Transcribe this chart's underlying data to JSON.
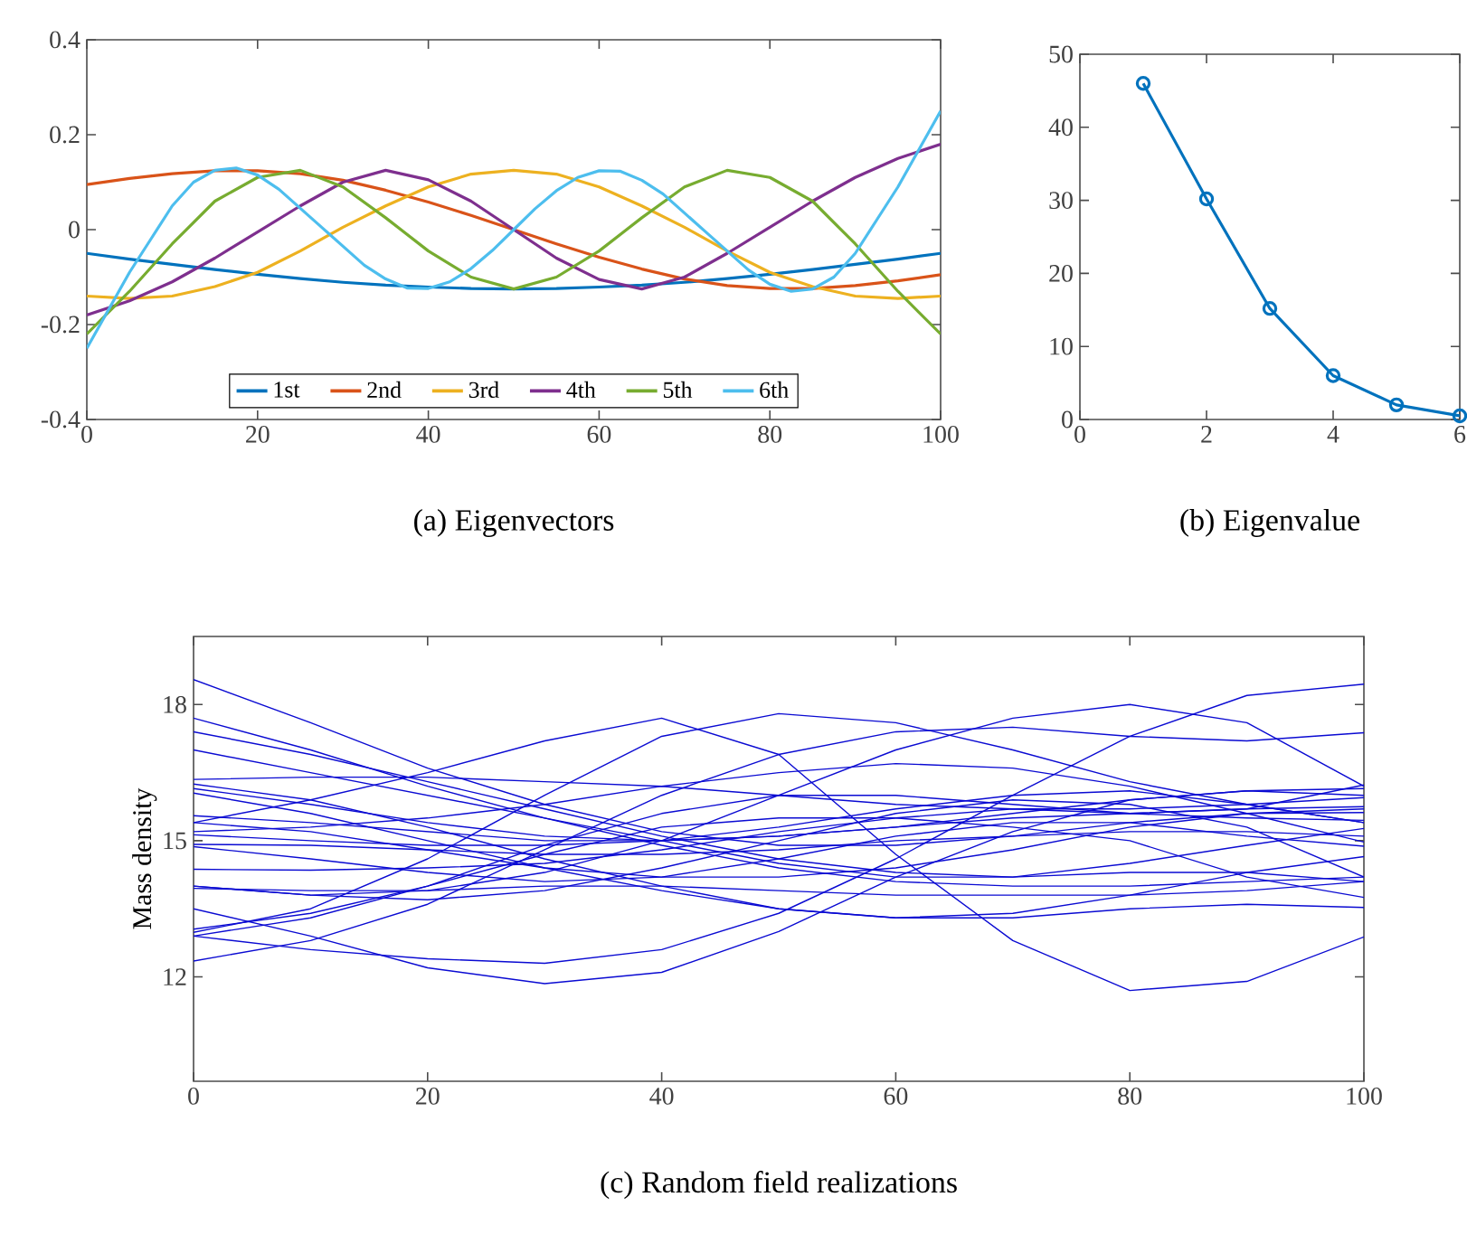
{
  "chart_data": [
    {
      "type": "line",
      "title": "(a)  Eigenvectors",
      "legend": "bottom",
      "marker": "none",
      "xlim": [
        0,
        100
      ],
      "ylim": [
        -0.4,
        0.4
      ],
      "xticks": [
        0,
        20,
        40,
        60,
        80,
        100
      ],
      "yticks": [
        -0.4,
        -0.2,
        0,
        0.2,
        0.4
      ],
      "series": [
        {
          "name": "1st",
          "color": "#0072bd",
          "x": [
            0,
            5,
            10,
            15,
            20,
            25,
            30,
            35,
            40,
            45,
            50,
            55,
            60,
            65,
            70,
            75,
            80,
            85,
            90,
            95,
            100
          ],
          "values": [
            -0.05,
            -0.062,
            -0.073,
            -0.084,
            -0.094,
            -0.103,
            -0.111,
            -0.117,
            -0.121,
            -0.124,
            -0.125,
            -0.124,
            -0.121,
            -0.117,
            -0.111,
            -0.103,
            -0.094,
            -0.084,
            -0.073,
            -0.062,
            -0.05
          ]
        },
        {
          "name": "2nd",
          "color": "#d95319",
          "x": [
            0,
            5,
            10,
            15,
            20,
            25,
            30,
            35,
            40,
            45,
            50,
            55,
            60,
            65,
            70,
            75,
            80,
            85,
            90,
            95,
            100
          ],
          "values": [
            0.095,
            0.108,
            0.118,
            0.124,
            0.124,
            0.118,
            0.104,
            0.083,
            0.058,
            0.03,
            0,
            -0.03,
            -0.058,
            -0.083,
            -0.104,
            -0.118,
            -0.124,
            -0.124,
            -0.118,
            -0.108,
            -0.095
          ]
        },
        {
          "name": "3rd",
          "color": "#edb120",
          "x": [
            0,
            5,
            10,
            15,
            20,
            25,
            30,
            35,
            40,
            45,
            50,
            55,
            60,
            65,
            70,
            75,
            80,
            85,
            90,
            95,
            100
          ],
          "values": [
            -0.14,
            -0.145,
            -0.14,
            -0.12,
            -0.09,
            -0.045,
            0.005,
            0.05,
            0.09,
            0.117,
            0.125,
            0.117,
            0.09,
            0.05,
            0.005,
            -0.045,
            -0.09,
            -0.12,
            -0.14,
            -0.145,
            -0.14
          ]
        },
        {
          "name": "4th",
          "color": "#7e2f8e",
          "x": [
            0,
            5,
            10,
            15,
            20,
            25,
            30,
            35,
            40,
            45,
            50,
            55,
            60,
            65,
            70,
            75,
            80,
            85,
            90,
            95,
            100
          ],
          "values": [
            -0.18,
            -0.15,
            -0.11,
            -0.06,
            -0.005,
            0.05,
            0.1,
            0.125,
            0.105,
            0.06,
            0,
            -0.06,
            -0.105,
            -0.125,
            -0.1,
            -0.05,
            0.005,
            0.06,
            0.11,
            0.15,
            0.18
          ]
        },
        {
          "name": "5th",
          "color": "#77ac30",
          "x": [
            0,
            5,
            10,
            15,
            20,
            25,
            30,
            35,
            40,
            45,
            50,
            55,
            60,
            65,
            70,
            75,
            80,
            85,
            90,
            95,
            100
          ],
          "values": [
            -0.22,
            -0.13,
            -0.03,
            0.06,
            0.11,
            0.125,
            0.09,
            0.025,
            -0.045,
            -0.1,
            -0.125,
            -0.1,
            -0.045,
            0.025,
            0.09,
            0.125,
            0.11,
            0.06,
            -0.03,
            -0.13,
            -0.22
          ]
        },
        {
          "name": "6th",
          "color": "#4dbeee",
          "x": [
            0,
            2.5,
            5,
            7.5,
            10,
            12.5,
            15,
            17.5,
            20,
            22.5,
            25,
            27.5,
            30,
            32.5,
            35,
            37.5,
            40,
            42.5,
            45,
            47.5,
            50,
            52.5,
            55,
            57.5,
            60,
            62.5,
            65,
            67.5,
            70,
            72.5,
            75,
            77.5,
            80,
            82.5,
            85,
            87.5,
            90,
            92.5,
            95,
            97.5,
            100
          ],
          "values": [
            -0.25,
            -0.17,
            -0.09,
            -0.02,
            0.05,
            0.1,
            0.125,
            0.13,
            0.115,
            0.085,
            0.045,
            0.005,
            -0.035,
            -0.075,
            -0.104,
            -0.123,
            -0.124,
            -0.11,
            -0.082,
            -0.044,
            0,
            0.044,
            0.082,
            0.11,
            0.124,
            0.123,
            0.104,
            0.075,
            0.035,
            -0.005,
            -0.045,
            -0.085,
            -0.115,
            -0.13,
            -0.125,
            -0.1,
            -0.05,
            0.02,
            0.09,
            0.17,
            0.25
          ]
        }
      ]
    },
    {
      "type": "line",
      "title": "(b)  Eigenvalue",
      "marker": "circle",
      "xlim": [
        0,
        6
      ],
      "ylim": [
        0,
        50
      ],
      "xticks": [
        0,
        2,
        4,
        6
      ],
      "yticks": [
        0,
        10,
        20,
        30,
        40,
        50
      ],
      "series": [
        {
          "color": "#0072bd",
          "x": [
            1,
            2,
            3,
            4,
            5,
            6
          ],
          "values": [
            46,
            30.2,
            15.2,
            6,
            2,
            0.5
          ]
        }
      ]
    },
    {
      "type": "line",
      "title": "(c)  Random field realizations",
      "ylabel": "Mass density",
      "marker": "none",
      "xlim": [
        0,
        100
      ],
      "ylim": [
        9.7,
        19.5
      ],
      "xticks": [
        0,
        20,
        40,
        60,
        80,
        100
      ],
      "yticks": [
        12,
        15,
        18
      ],
      "series": [
        {
          "color": "#0a0ad2",
          "x": [
            0,
            10,
            20,
            30,
            40,
            50,
            60,
            70,
            80,
            90,
            100
          ],
          "values": [
            18.55,
            17.6,
            16.6,
            15.8,
            15.2,
            14.9,
            14.9,
            15.1,
            15.4,
            15.6,
            15.7
          ]
        },
        {
          "color": "#0a0ad2",
          "x": [
            0,
            10,
            20,
            30,
            40,
            50,
            60,
            70,
            80,
            90,
            100
          ],
          "values": [
            17.7,
            17.0,
            16.2,
            15.5,
            14.9,
            14.4,
            14.1,
            14.0,
            14.0,
            14.1,
            14.2
          ]
        },
        {
          "color": "#0a0ad2",
          "x": [
            0,
            10,
            20,
            30,
            40,
            50,
            60,
            70,
            80,
            90,
            100
          ],
          "values": [
            17.4,
            16.9,
            16.3,
            15.7,
            15.1,
            14.6,
            14.3,
            14.2,
            14.3,
            14.3,
            14.1
          ]
        },
        {
          "color": "#0a0ad2",
          "x": [
            0,
            10,
            20,
            30,
            40,
            50,
            60,
            70,
            80,
            90,
            100
          ],
          "values": [
            15.4,
            15.9,
            16.5,
            17.2,
            17.7,
            16.9,
            14.7,
            12.8,
            11.7,
            11.9,
            12.88
          ]
        },
        {
          "color": "#0a0ad2",
          "x": [
            0,
            10,
            20,
            30,
            40,
            50,
            60,
            70,
            80,
            90,
            100
          ],
          "values": [
            13.5,
            12.9,
            12.2,
            11.85,
            12.1,
            13.0,
            14.2,
            15.2,
            15.9,
            16.1,
            16.0
          ]
        },
        {
          "color": "#0a0ad2",
          "x": [
            0,
            10,
            20,
            30,
            40,
            50,
            60,
            70,
            80,
            90,
            100
          ],
          "values": [
            12.9,
            12.6,
            12.4,
            12.3,
            12.6,
            13.4,
            14.6,
            16.0,
            17.3,
            18.2,
            18.45
          ]
        },
        {
          "color": "#0a0ad2",
          "x": [
            0,
            10,
            20,
            30,
            40,
            50,
            60,
            70,
            80,
            90,
            100
          ],
          "values": [
            14.0,
            13.8,
            13.9,
            14.3,
            15.0,
            16.0,
            17.0,
            17.7,
            18.0,
            17.6,
            16.2
          ]
        },
        {
          "color": "#0a0ad2",
          "x": [
            0,
            10,
            20,
            30,
            40,
            50,
            60,
            70,
            80,
            90,
            100
          ],
          "values": [
            12.98,
            13.5,
            14.6,
            16.0,
            17.3,
            17.8,
            17.6,
            17.0,
            16.3,
            15.8,
            15.4
          ]
        },
        {
          "color": "#0a0ad2",
          "x": [
            0,
            10,
            20,
            30,
            40,
            50,
            60,
            70,
            80,
            90,
            100
          ],
          "values": [
            12.35,
            12.8,
            13.6,
            14.8,
            16.0,
            16.9,
            17.4,
            17.5,
            17.3,
            17.2,
            17.38
          ]
        },
        {
          "color": "#0a0ad2",
          "x": [
            0,
            10,
            20,
            30,
            40,
            50,
            60,
            70,
            80,
            90,
            100
          ],
          "values": [
            17.0,
            16.5,
            16.0,
            15.5,
            15.0,
            14.5,
            14.2,
            14.2,
            14.5,
            14.9,
            15.27
          ]
        },
        {
          "color": "#0a0ad2",
          "x": [
            0,
            10,
            20,
            30,
            40,
            50,
            60,
            70,
            80,
            90,
            100
          ],
          "values": [
            16.35,
            16.4,
            16.4,
            16.3,
            16.2,
            16.0,
            15.8,
            15.7,
            15.7,
            15.8,
            15.95
          ]
        },
        {
          "color": "#0a0ad2",
          "x": [
            0,
            10,
            20,
            30,
            40,
            50,
            60,
            70,
            80,
            90,
            100
          ],
          "values": [
            16.25,
            15.9,
            15.3,
            14.6,
            14.0,
            13.5,
            13.3,
            13.4,
            13.8,
            14.3,
            14.65
          ]
        },
        {
          "color": "#0a0ad2",
          "x": [
            0,
            10,
            20,
            30,
            40,
            50,
            60,
            70,
            80,
            90,
            100
          ],
          "values": [
            16.15,
            15.8,
            15.4,
            15.1,
            15.0,
            15.1,
            15.3,
            15.6,
            15.9,
            16.1,
            16.15
          ]
        },
        {
          "color": "#0a0ad2",
          "x": [
            0,
            10,
            20,
            30,
            40,
            50,
            60,
            70,
            80,
            90,
            100
          ],
          "values": [
            16.05,
            15.6,
            15.0,
            14.4,
            13.9,
            13.5,
            13.3,
            13.3,
            13.5,
            13.6,
            13.53
          ]
        },
        {
          "color": "#0a0ad2",
          "x": [
            0,
            10,
            20,
            30,
            40,
            50,
            60,
            70,
            80,
            90,
            100
          ],
          "values": [
            15.55,
            15.4,
            15.2,
            15.0,
            15.0,
            15.1,
            15.3,
            15.5,
            15.6,
            15.7,
            15.75
          ]
        },
        {
          "color": "#0a0ad2",
          "x": [
            0,
            10,
            20,
            30,
            40,
            50,
            60,
            70,
            80,
            90,
            100
          ],
          "values": [
            15.4,
            15.2,
            14.8,
            14.4,
            14.2,
            14.2,
            14.4,
            14.8,
            15.3,
            15.6,
            15.62
          ]
        },
        {
          "color": "#0a0ad2",
          "x": [
            0,
            10,
            20,
            30,
            40,
            50,
            60,
            70,
            80,
            90,
            100
          ],
          "values": [
            15.2,
            15.3,
            15.5,
            15.8,
            16.2,
            16.5,
            16.7,
            16.6,
            16.2,
            15.6,
            14.97
          ]
        },
        {
          "color": "#0a0ad2",
          "x": [
            0,
            10,
            20,
            30,
            40,
            50,
            60,
            70,
            80,
            90,
            100
          ],
          "values": [
            15.13,
            15.0,
            14.9,
            14.9,
            15.0,
            15.3,
            15.7,
            16.0,
            16.1,
            15.8,
            15.4
          ]
        },
        {
          "color": "#0a0ad2",
          "x": [
            0,
            10,
            20,
            30,
            40,
            50,
            60,
            70,
            80,
            90,
            100
          ],
          "values": [
            14.92,
            14.9,
            14.8,
            14.7,
            14.7,
            14.8,
            15.0,
            15.1,
            15.2,
            15.2,
            15.1
          ]
        },
        {
          "color": "#0a0ad2",
          "x": [
            0,
            10,
            20,
            30,
            40,
            50,
            60,
            70,
            80,
            90,
            100
          ],
          "values": [
            14.87,
            14.6,
            14.3,
            14.1,
            14.2,
            14.6,
            15.1,
            15.4,
            15.4,
            15.1,
            14.88
          ]
        },
        {
          "color": "#0a0ad2",
          "x": [
            0,
            10,
            20,
            30,
            40,
            50,
            60,
            70,
            80,
            90,
            100
          ],
          "values": [
            14.37,
            14.35,
            14.4,
            14.5,
            14.8,
            15.2,
            15.5,
            15.7,
            15.6,
            15.5,
            15.45
          ]
        },
        {
          "color": "#0a0ad2",
          "x": [
            0,
            10,
            20,
            30,
            40,
            50,
            60,
            70,
            80,
            90,
            100
          ],
          "values": [
            14.0,
            13.8,
            13.7,
            13.9,
            14.4,
            15.0,
            15.6,
            15.9,
            15.8,
            15.3,
            14.2
          ]
        },
        {
          "color": "#0a0ad2",
          "x": [
            0,
            10,
            20,
            30,
            40,
            50,
            60,
            70,
            80,
            90,
            100
          ],
          "values": [
            13.95,
            13.9,
            13.9,
            14.0,
            14.0,
            13.9,
            13.8,
            13.8,
            13.8,
            13.9,
            14.1
          ]
        },
        {
          "color": "#0a0ad2",
          "x": [
            0,
            10,
            20,
            30,
            40,
            50,
            60,
            70,
            80,
            90,
            100
          ],
          "values": [
            13.05,
            13.4,
            14.0,
            14.7,
            15.3,
            15.5,
            15.5,
            15.3,
            15.0,
            14.2,
            13.75
          ]
        },
        {
          "color": "#0a0ad2",
          "x": [
            0,
            10,
            20,
            30,
            40,
            50,
            60,
            70,
            80,
            90,
            100
          ],
          "values": [
            12.9,
            13.3,
            14.0,
            14.9,
            15.6,
            16.0,
            16.0,
            15.8,
            15.6,
            15.7,
            16.23
          ]
        }
      ]
    }
  ]
}
